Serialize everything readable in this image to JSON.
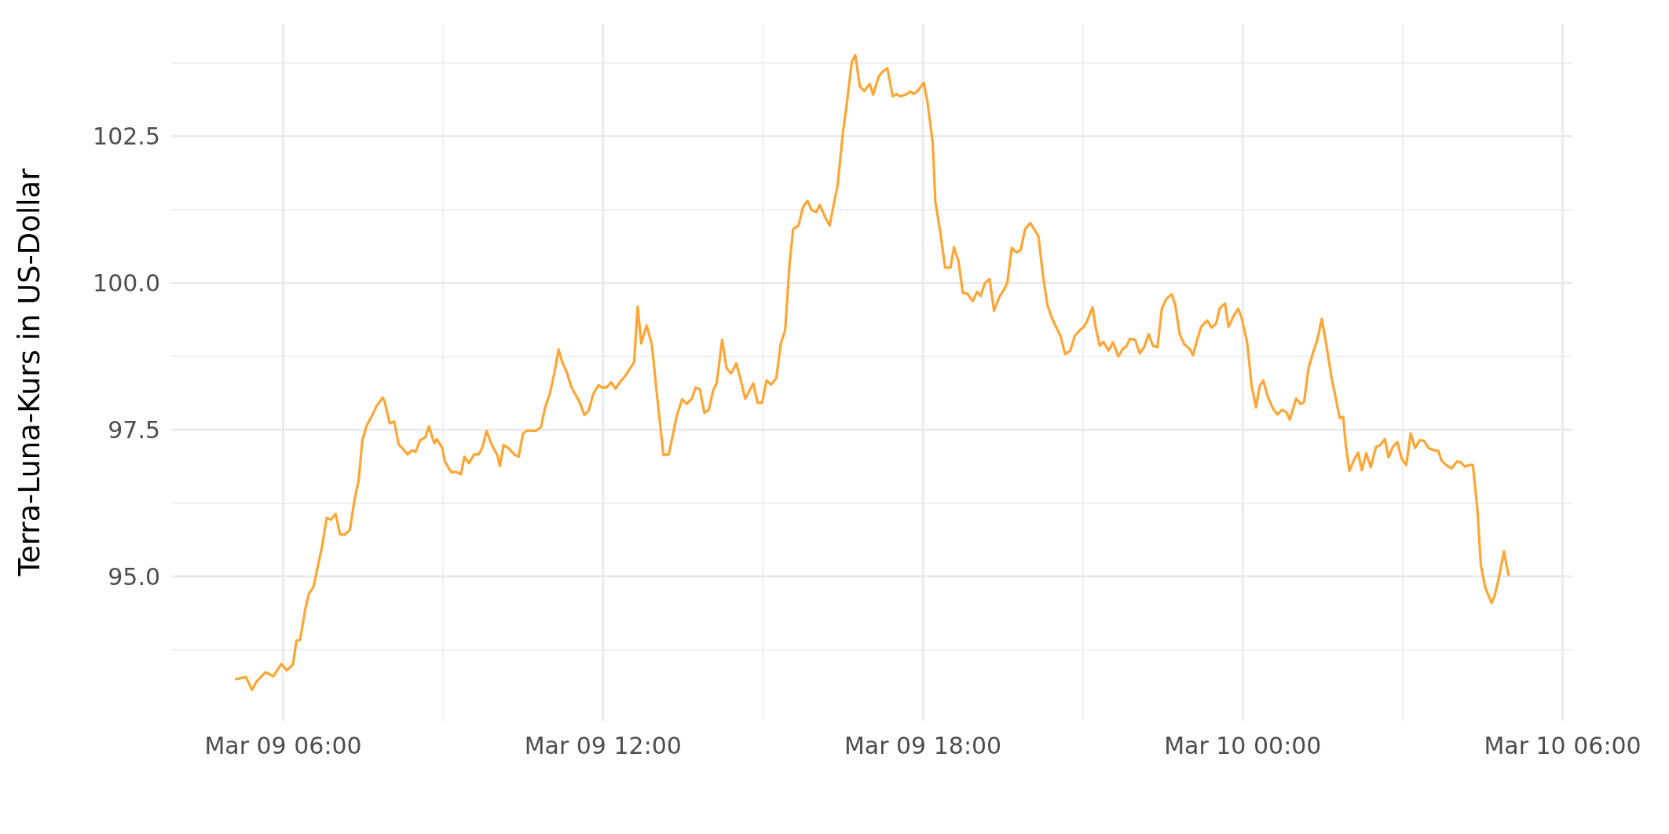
{
  "chart_data": {
    "type": "line",
    "ylabel": "Terra-Luna-Kurs in US-Dollar",
    "xlim": [
      "--03-09T03:54",
      "--03-10T06:11"
    ],
    "ylim": [
      92.54,
      104.42
    ],
    "xticks": [
      {
        "value": "--03-09T06:00",
        "label": "Mar 09 06:00"
      },
      {
        "value": "--03-09T09:00",
        "label": null
      },
      {
        "value": "--03-09T12:00",
        "label": "Mar 09 12:00"
      },
      {
        "value": "--03-09T15:00",
        "label": null
      },
      {
        "value": "--03-09T18:00",
        "label": "Mar 09 18:00"
      },
      {
        "value": "--03-09T21:00",
        "label": null
      },
      {
        "value": "--03-10T00:00",
        "label": "Mar 10 00:00"
      },
      {
        "value": "--03-10T03:00",
        "label": null
      },
      {
        "value": "--03-10T06:00",
        "label": "Mar 10 06:00"
      }
    ],
    "yticks": [
      {
        "value": 93.75,
        "label": null
      },
      {
        "value": 95,
        "label": "95.0"
      },
      {
        "value": 96.25,
        "label": null
      },
      {
        "value": 97.5,
        "label": "97.5"
      },
      {
        "value": 98.75,
        "label": null
      },
      {
        "value": 100,
        "label": "100.0"
      },
      {
        "value": 101.25,
        "label": null
      },
      {
        "value": 102.5,
        "label": "102.5"
      },
      {
        "value": 103.75,
        "label": null
      }
    ],
    "grid": true,
    "marker": "none",
    "line_style": "solid",
    "series": [
      {
        "color": "#ffa533",
        "x": [
          "--03-09T05:07",
          "--03-09T05:18",
          "--03-09T05:25",
          "--03-09T05:30",
          "--03-09T05:40",
          "--03-09T05:49",
          "--03-09T05:58",
          "--03-09T06:04",
          "--03-09T06:11",
          "--03-09T06:15",
          "--03-09T06:19",
          "--03-09T06:25",
          "--03-09T06:29",
          "--03-09T06:34",
          "--03-09T06:44",
          "--03-09T06:49",
          "--03-09T06:54",
          "--03-09T06:59",
          "--03-09T07:04",
          "--03-09T07:09",
          "--03-09T07:15",
          "--03-09T07:20",
          "--03-09T07:25",
          "--03-09T07:29",
          "--03-09T07:34",
          "--03-09T07:40",
          "--03-09T07:45",
          "--03-09T07:52",
          "--03-09T07:54",
          "--03-09T08:00",
          "--03-09T08:05",
          "--03-09T08:10",
          "--03-09T08:15",
          "--03-09T08:20",
          "--03-09T08:25",
          "--03-09T08:29",
          "--03-09T08:34",
          "--03-09T08:40",
          "--03-09T08:44",
          "--03-09T08:50",
          "--03-09T08:53",
          "--03-09T08:59",
          "--03-09T09:02",
          "--03-09T09:09",
          "--03-09T09:15",
          "--03-09T09:20",
          "--03-09T09:24",
          "--03-09T09:29",
          "--03-09T09:35",
          "--03-09T09:40",
          "--03-09T09:44",
          "--03-09T09:49",
          "--03-09T09:54",
          "--03-09T10:01",
          "--03-09T10:04",
          "--03-09T10:08",
          "--03-09T10:14",
          "--03-09T10:20",
          "--03-09T10:25",
          "--03-09T10:30",
          "--03-09T10:35",
          "--03-09T10:44",
          "--03-09T10:50",
          "--03-09T10:55",
          "--03-09T11:00",
          "--03-09T11:05",
          "--03-09T11:10",
          "--03-09T11:14",
          "--03-09T11:19",
          "--03-09T11:24",
          "--03-09T11:34",
          "--03-09T11:39",
          "--03-09T11:44",
          "--03-09T11:49",
          "--03-09T11:55",
          "--03-09T11:59",
          "--03-09T12:04",
          "--03-09T12:09",
          "--03-09T12:14",
          "--03-09T12:19",
          "--03-09T12:25",
          "--03-09T12:35",
          "--03-09T12:39",
          "--03-09T12:43",
          "--03-09T12:49",
          "--03-09T12:55",
          "--03-09T13:00",
          "--03-09T13:08",
          "--03-09T13:14",
          "--03-09T13:23",
          "--03-09T13:29",
          "--03-09T13:34",
          "--03-09T13:40",
          "--03-09T13:44",
          "--03-09T13:49",
          "--03-09T13:54",
          "--03-09T13:59",
          "--03-09T14:04",
          "--03-09T14:08",
          "--03-09T14:14",
          "--03-09T14:19",
          "--03-09T14:24",
          "--03-09T14:30",
          "--03-09T14:34",
          "--03-09T14:40",
          "--03-09T14:49",
          "--03-09T14:54",
          "--03-09T14:59",
          "--03-09T15:04",
          "--03-09T15:09",
          "--03-09T15:15",
          "--03-09T15:20",
          "--03-09T15:25",
          "--03-09T15:30",
          "--03-09T15:34",
          "--03-09T15:40",
          "--03-09T15:45",
          "--03-09T15:50",
          "--03-09T15:55",
          "--03-09T16:00",
          "--03-09T16:04",
          "--03-09T16:10",
          "--03-09T16:15",
          "--03-09T16:19",
          "--03-09T16:24",
          "--03-09T16:30",
          "--03-09T16:34",
          "--03-09T16:40",
          "--03-09T16:44",
          "--03-09T16:49",
          "--03-09T16:54",
          "--03-09T17:00",
          "--03-09T17:04",
          "--03-09T17:10",
          "--03-09T17:14",
          "--03-09T17:20",
          "--03-09T17:26",
          "--03-09T17:31",
          "--03-09T17:34",
          "--03-09T17:41",
          "--03-09T17:46",
          "--03-09T17:50",
          "--03-09T17:55",
          "--03-09T18:01",
          "--03-09T18:05",
          "--03-09T18:11",
          "--03-09T18:14",
          "--03-09T18:20",
          "--03-09T18:25",
          "--03-09T18:31",
          "--03-09T18:35",
          "--03-09T18:40",
          "--03-09T18:45",
          "--03-09T18:50",
          "--03-09T18:56",
          "--03-09T19:01",
          "--03-09T19:05",
          "--03-09T19:10",
          "--03-09T19:15",
          "--03-09T19:20",
          "--03-09T19:26",
          "--03-09T19:31",
          "--03-09T19:35",
          "--03-09T19:40",
          "--03-09T19:45",
          "--03-09T19:50",
          "--03-09T19:55",
          "--03-09T20:01",
          "--03-09T20:10",
          "--03-09T20:15",
          "--03-09T20:20",
          "--03-09T20:25",
          "--03-09T20:30",
          "--03-09T20:35",
          "--03-09T20:40",
          "--03-09T20:46",
          "--03-09T20:51",
          "--03-09T20:56",
          "--03-09T21:01",
          "--03-09T21:05",
          "--03-09T21:11",
          "--03-09T21:14",
          "--03-09T21:19",
          "--03-09T21:23",
          "--03-09T21:29",
          "--03-09T21:34",
          "--03-09T21:40",
          "--03-09T21:45",
          "--03-09T21:49",
          "--03-09T21:53",
          "--03-09T21:59",
          "--03-09T22:04",
          "--03-09T22:09",
          "--03-09T22:14",
          "--03-09T22:19",
          "--03-09T22:24",
          "--03-09T22:29",
          "--03-09T22:34",
          "--03-09T22:40",
          "--03-09T22:44",
          "--03-09T22:49",
          "--03-09T22:54",
          "--03-09T23:00",
          "--03-09T23:04",
          "--03-09T23:09",
          "--03-09T23:13",
          "--03-09T23:20",
          "--03-09T23:25",
          "--03-09T23:30",
          "--03-09T23:34",
          "--03-09T23:40",
          "--03-09T23:44",
          "--03-09T23:50",
          "--03-09T23:55",
          "--03-09T23:59",
          "--03-10T00:05",
          "--03-10T00:10",
          "--03-10T00:15",
          "--03-10T00:19",
          "--03-10T00:23",
          "--03-10T00:28",
          "--03-10T00:34",
          "--03-10T00:39",
          "--03-10T00:44",
          "--03-10T00:49",
          "--03-10T00:53",
          "--03-10T01:00",
          "--03-10T01:05",
          "--03-10T01:09",
          "--03-10T01:14",
          "--03-10T01:19",
          "--03-10T01:24",
          "--03-10T01:29",
          "--03-10T01:34",
          "--03-10T01:40",
          "--03-10T01:44",
          "--03-10T01:49",
          "--03-10T01:53",
          "--03-10T01:56",
          "--03-10T02:00",
          "--03-10T02:05",
          "--03-10T02:10",
          "--03-10T02:14",
          "--03-10T02:19",
          "--03-10T02:24",
          "--03-10T02:30",
          "--03-10T02:34",
          "--03-10T02:40",
          "--03-10T02:44",
          "--03-10T02:49",
          "--03-10T02:54",
          "--03-10T02:59",
          "--03-10T03:04",
          "--03-10T03:09",
          "--03-10T03:14",
          "--03-10T03:19",
          "--03-10T03:24",
          "--03-10T03:29",
          "--03-10T03:35",
          "--03-10T03:40",
          "--03-10T03:44",
          "--03-10T03:49",
          "--03-10T03:55",
          "--03-10T04:01",
          "--03-10T04:05",
          "--03-10T04:10",
          "--03-10T04:15",
          "--03-10T04:19",
          "--03-10T04:24",
          "--03-10T04:28",
          "--03-10T04:33",
          "--03-10T04:40",
          "--03-10T04:43",
          "--03-10T04:48",
          "--03-10T04:54",
          "--03-10T04:59"
        ],
        "values": [
          93.25,
          93.29,
          93.07,
          93.21,
          93.37,
          93.3,
          93.51,
          93.4,
          93.5,
          93.91,
          93.92,
          94.45,
          94.71,
          94.82,
          95.53,
          96.0,
          95.97,
          96.07,
          95.72,
          95.71,
          95.79,
          96.28,
          96.64,
          97.31,
          97.57,
          97.74,
          97.9,
          98.05,
          97.99,
          97.61,
          97.64,
          97.25,
          97.17,
          97.08,
          97.15,
          97.12,
          97.32,
          97.37,
          97.56,
          97.27,
          97.34,
          97.19,
          96.96,
          96.78,
          96.78,
          96.74,
          97.04,
          96.93,
          97.08,
          97.08,
          97.19,
          97.48,
          97.27,
          97.07,
          96.88,
          97.24,
          97.18,
          97.08,
          97.04,
          97.44,
          97.49,
          97.48,
          97.54,
          97.89,
          98.11,
          98.45,
          98.87,
          98.65,
          98.49,
          98.24,
          97.96,
          97.75,
          97.83,
          98.11,
          98.26,
          98.22,
          98.22,
          98.31,
          98.2,
          98.31,
          98.42,
          98.65,
          99.6,
          98.97,
          99.28,
          98.95,
          98.19,
          97.07,
          97.08,
          97.74,
          98.02,
          97.94,
          98.03,
          98.22,
          98.19,
          97.79,
          97.84,
          98.17,
          98.3,
          99.03,
          98.55,
          98.46,
          98.63,
          98.41,
          98.03,
          98.29,
          97.96,
          97.96,
          98.34,
          98.27,
          98.38,
          98.96,
          99.2,
          100.34,
          100.92,
          100.98,
          101.29,
          101.4,
          101.24,
          101.21,
          101.33,
          101.12,
          100.98,
          101.29,
          101.66,
          102.56,
          103.01,
          103.77,
          103.88,
          103.35,
          103.27,
          103.39,
          103.21,
          103.51,
          103.59,
          103.66,
          103.18,
          103.22,
          103.18,
          103.21,
          103.26,
          103.22,
          103.29,
          103.41,
          103.1,
          102.4,
          101.39,
          100.82,
          100.26,
          100.26,
          100.61,
          100.37,
          99.83,
          99.82,
          99.69,
          99.85,
          99.78,
          100.0,
          100.07,
          99.53,
          99.76,
          99.88,
          100.0,
          100.6,
          100.52,
          100.56,
          100.92,
          101.02,
          100.8,
          100.15,
          99.63,
          99.41,
          99.25,
          99.09,
          98.79,
          98.85,
          99.1,
          99.19,
          99.25,
          99.36,
          99.59,
          99.28,
          98.93,
          99.0,
          98.85,
          98.99,
          98.75,
          98.88,
          98.92,
          99.05,
          99.03,
          98.8,
          98.91,
          99.13,
          98.93,
          98.91,
          99.57,
          99.73,
          99.81,
          99.63,
          99.13,
          98.96,
          98.88,
          98.77,
          99.05,
          99.25,
          99.36,
          99.24,
          99.31,
          99.57,
          99.65,
          99.25,
          99.45,
          99.56,
          99.39,
          98.98,
          98.24,
          97.88,
          98.24,
          98.34,
          98.07,
          97.86,
          97.76,
          97.84,
          97.8,
          97.67,
          98.03,
          97.94,
          97.97,
          98.55,
          98.81,
          99.04,
          99.39,
          98.95,
          98.38,
          98.09,
          97.7,
          97.72,
          97.24,
          96.8,
          96.98,
          97.11,
          96.81,
          97.1,
          96.86,
          97.21,
          97.23,
          97.34,
          97.03,
          97.21,
          97.29,
          97.0,
          96.9,
          97.44,
          97.19,
          97.32,
          97.31,
          97.19,
          97.15,
          97.14,
          96.97,
          96.9,
          96.84,
          96.96,
          96.95,
          96.87,
          96.9,
          96.9,
          96.16,
          95.19,
          94.81,
          94.55,
          94.65,
          94.96,
          95.43,
          95.03
        ]
      }
    ]
  }
}
